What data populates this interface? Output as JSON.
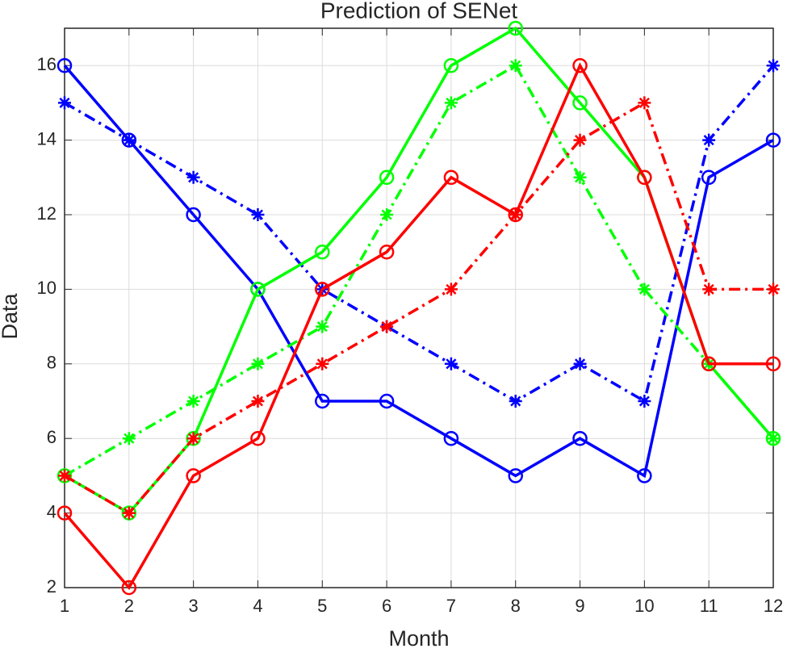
{
  "chart_data": {
    "type": "line",
    "title": "Prediction of SENet",
    "x_label": "Month",
    "y_label": "Data",
    "x": [
      1,
      2,
      3,
      4,
      5,
      6,
      7,
      8,
      9,
      10,
      11,
      12
    ],
    "xlim": [
      1,
      12
    ],
    "xticks": [
      1,
      2,
      3,
      4,
      5,
      6,
      7,
      8,
      9,
      10,
      11,
      12
    ],
    "ylim": [
      2,
      17
    ],
    "yticks": [
      2,
      4,
      6,
      8,
      10,
      12,
      14,
      16
    ],
    "grid": true,
    "series": [
      {
        "color": "#0000ff",
        "linestyle": "solid",
        "marker": "circle",
        "values": [
          16,
          14,
          12,
          10,
          7,
          7,
          6,
          5,
          6,
          5,
          13,
          14
        ]
      },
      {
        "color": "#0000ff",
        "linestyle": "dashdot",
        "marker": "star",
        "values": [
          15,
          14,
          13,
          12,
          10,
          9,
          8,
          7,
          8,
          7,
          14,
          16
        ]
      },
      {
        "color": "#00ff00",
        "linestyle": "solid",
        "marker": "circle",
        "values": [
          5,
          4,
          6,
          10,
          11,
          13,
          16,
          17,
          15,
          13,
          8,
          6
        ]
      },
      {
        "color": "#00ff00",
        "linestyle": "dashdot",
        "marker": "star",
        "values": [
          5,
          6,
          7,
          8,
          9,
          12,
          15,
          16,
          13,
          10,
          8,
          6
        ]
      },
      {
        "color": "#ff0000",
        "linestyle": "solid",
        "marker": "circle",
        "values": [
          4,
          2,
          5,
          6,
          10,
          11,
          13,
          12,
          16,
          13,
          8,
          8
        ]
      },
      {
        "color": "#ff0000",
        "linestyle": "dashdot",
        "marker": "star",
        "values": [
          5,
          4,
          6,
          7,
          8,
          9,
          10,
          12,
          14,
          15,
          10,
          10
        ]
      }
    ]
  }
}
